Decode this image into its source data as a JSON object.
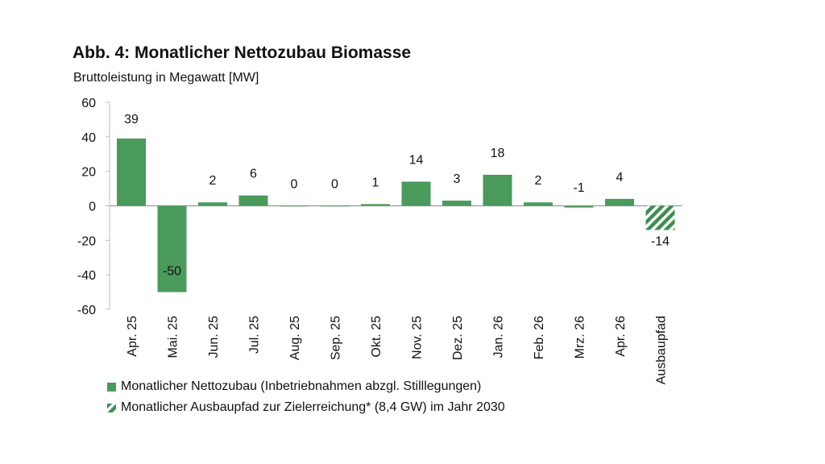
{
  "chart_data": {
    "type": "bar",
    "title": "Abb. 4: Monatlicher Nettozubau Biomasse",
    "subtitle": "Bruttoleistung in Megawatt [MW]",
    "categories": [
      "Apr. 25",
      "Mai. 25",
      "Jun. 25",
      "Jul. 25",
      "Aug. 25",
      "Sep. 25",
      "Okt. 25",
      "Nov. 25",
      "Dez. 25",
      "Jan. 26",
      "Feb. 26",
      "Mrz. 26",
      "Apr. 26",
      "Ausbaupfad"
    ],
    "values": [
      39,
      -50,
      2,
      6,
      0,
      0,
      1,
      14,
      3,
      18,
      2,
      -1,
      4,
      -14
    ],
    "bar_styles": [
      "solid",
      "solid",
      "solid",
      "solid",
      "solid",
      "solid",
      "solid",
      "solid",
      "solid",
      "solid",
      "solid",
      "solid",
      "solid",
      "hatched"
    ],
    "ylim": [
      -60,
      60
    ],
    "yticks": [
      -60,
      -40,
      -20,
      0,
      20,
      40,
      60
    ],
    "grid": false,
    "legend_position": "bottom-left",
    "series": [
      {
        "name": "Monatlicher Nettozubau (Inbetriebnahmen abzgl. Stilllegungen)",
        "style": "solid"
      },
      {
        "name": "Monatlicher Ausbaupfad zur Zielerreichung* (8,4 GW) im Jahr 2030",
        "style": "hatched"
      }
    ],
    "colors": {
      "bar": "#4a9a5c",
      "hatch": "#3d8f50"
    }
  }
}
